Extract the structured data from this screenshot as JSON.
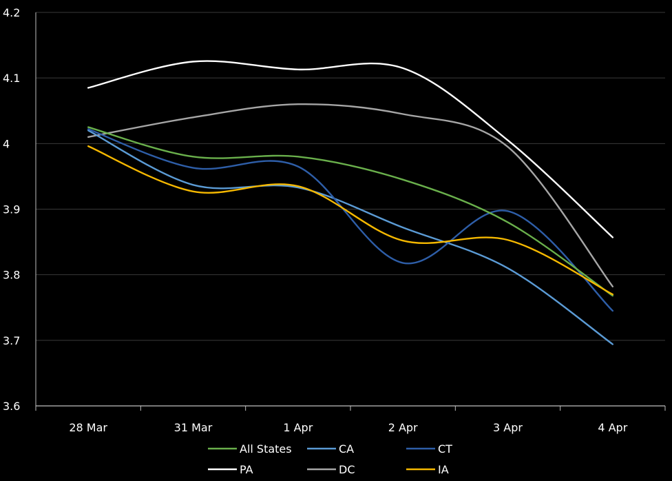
{
  "chart_data": {
    "type": "line",
    "categories": [
      "28 Mar",
      "31 Mar",
      "1 Apr",
      "2 Apr",
      "3 Apr",
      "4 Apr"
    ],
    "ylim": [
      3.6,
      4.2
    ],
    "yticks": [
      "3.6",
      "3.7",
      "3.8",
      "3.9",
      "4",
      "4.1",
      "4.2"
    ],
    "grid": true,
    "legend": "bottom",
    "series": [
      {
        "name": "All States",
        "color": "#6AB04C",
        "values": [
          4.025,
          3.98,
          3.98,
          3.945,
          3.88,
          3.768
        ]
      },
      {
        "name": "CA",
        "color": "#5B9BD5",
        "values": [
          4.02,
          3.937,
          3.933,
          3.872,
          3.81,
          3.694
        ]
      },
      {
        "name": "CT",
        "color": "#2E5EA8",
        "values": [
          4.022,
          3.963,
          3.965,
          3.818,
          3.897,
          3.745
        ]
      },
      {
        "name": "PA",
        "color": "#FFFFFF",
        "values": [
          4.085,
          4.125,
          4.113,
          4.115,
          4.005,
          3.857
        ]
      },
      {
        "name": "DC",
        "color": "#A6A6A6",
        "values": [
          4.01,
          4.04,
          4.06,
          4.045,
          3.995,
          3.782
        ]
      },
      {
        "name": "IA",
        "color": "#F5B800",
        "values": [
          3.996,
          3.927,
          3.935,
          3.852,
          3.853,
          3.77
        ]
      }
    ]
  }
}
